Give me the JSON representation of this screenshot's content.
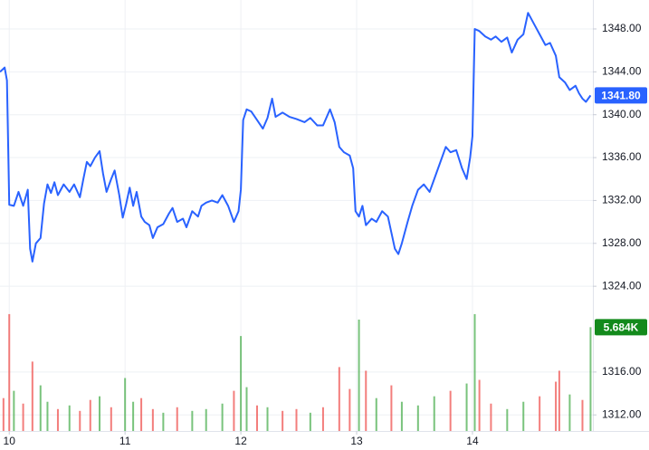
{
  "chart_data": {
    "type": "line",
    "color": "#2962ff",
    "xlim": [
      9.92,
      15.04
    ],
    "xticks": [
      10,
      11,
      12,
      13,
      14
    ],
    "ylim": [
      1310.5,
      1350.7
    ],
    "yticks": [
      {
        "value": 1312,
        "label": "1312.00"
      },
      {
        "value": 1316,
        "label": "1316.00"
      },
      {
        "value": 1324,
        "label": "1324.00"
      },
      {
        "value": 1328,
        "label": "1328.00"
      },
      {
        "value": 1332,
        "label": "1332.00"
      },
      {
        "value": 1336,
        "label": "1336.00"
      },
      {
        "value": 1340,
        "label": "1340.00"
      },
      {
        "value": 1344,
        "label": "1344.00"
      },
      {
        "value": 1348,
        "label": "1348.00"
      }
    ],
    "grid": true,
    "x": [
      9.92,
      9.96,
      9.98,
      10.0,
      10.04,
      10.08,
      10.12,
      10.16,
      10.18,
      10.2,
      10.23,
      10.27,
      10.3,
      10.33,
      10.36,
      10.39,
      10.42,
      10.47,
      10.52,
      10.56,
      10.61,
      10.64,
      10.67,
      10.7,
      10.74,
      10.78,
      10.81,
      10.84,
      10.88,
      10.91,
      10.95,
      10.98,
      11.01,
      11.04,
      11.07,
      11.1,
      11.14,
      11.17,
      11.21,
      11.24,
      11.28,
      11.33,
      11.38,
      11.41,
      11.45,
      11.5,
      11.53,
      11.58,
      11.63,
      11.66,
      11.7,
      11.75,
      11.8,
      11.84,
      11.89,
      11.94,
      11.98,
      12.0,
      12.02,
      12.05,
      12.09,
      12.14,
      12.19,
      12.23,
      12.27,
      12.3,
      12.36,
      12.42,
      12.48,
      12.55,
      12.6,
      12.66,
      12.71,
      12.77,
      12.81,
      12.85,
      12.89,
      12.94,
      12.97,
      12.99,
      13.02,
      13.05,
      13.08,
      13.13,
      13.17,
      13.22,
      13.27,
      13.3,
      13.33,
      13.36,
      13.39,
      13.44,
      13.48,
      13.53,
      13.58,
      13.63,
      13.67,
      13.72,
      13.77,
      13.81,
      13.86,
      13.91,
      13.95,
      13.98,
      14.0,
      14.02,
      14.06,
      14.11,
      14.16,
      14.2,
      14.25,
      14.3,
      14.34,
      14.39,
      14.44,
      14.48,
      14.53,
      14.58,
      14.63,
      14.67,
      14.72,
      14.75,
      14.8,
      14.84,
      14.89,
      14.92,
      14.95,
      14.98,
      15.02
    ],
    "values": [
      1344,
      1344.4,
      1343.2,
      1331.6,
      1331.5,
      1332.8,
      1331.5,
      1333,
      1327.5,
      1326.3,
      1328,
      1328.5,
      1331.7,
      1333.5,
      1332.7,
      1333.7,
      1332.5,
      1333.5,
      1332.8,
      1333.5,
      1332.3,
      1334,
      1335.6,
      1335.2,
      1336,
      1336.6,
      1334.5,
      1332.8,
      1334,
      1334.8,
      1332.5,
      1330.4,
      1331.7,
      1333.2,
      1331.5,
      1332.8,
      1330.5,
      1330,
      1329.7,
      1328.5,
      1329.5,
      1329.8,
      1330.8,
      1331.3,
      1330,
      1330.3,
      1329.5,
      1331,
      1330.5,
      1331.5,
      1331.8,
      1332,
      1331.8,
      1332.5,
      1331.5,
      1330,
      1331,
      1333,
      1339.5,
      1340.5,
      1340.3,
      1339.5,
      1338.7,
      1339.7,
      1341.5,
      1339.8,
      1340.2,
      1339.8,
      1339.6,
      1339.3,
      1339.7,
      1339,
      1339,
      1340.5,
      1339.3,
      1337,
      1336.5,
      1336.2,
      1335,
      1331,
      1330.5,
      1331.5,
      1329.7,
      1330.3,
      1330,
      1331,
      1330.5,
      1329,
      1327.5,
      1327,
      1328,
      1330,
      1331.5,
      1333,
      1333.5,
      1332.8,
      1334,
      1335.5,
      1337,
      1336.5,
      1336.7,
      1335,
      1334,
      1336,
      1338,
      1348,
      1347.8,
      1347.3,
      1347,
      1347.3,
      1346.8,
      1347.2,
      1345.8,
      1347,
      1347.5,
      1349.5,
      1348.5,
      1347.5,
      1346.5,
      1346.7,
      1345.5,
      1343.5,
      1343,
      1342.3,
      1342.7,
      1342,
      1341.5,
      1341.2,
      1341.8
    ],
    "price_label": "1341.80",
    "volume": {
      "y2lim": [
        0,
        23.6
      ],
      "x": [
        9.95,
        10.0,
        10.04,
        10.12,
        10.2,
        10.27,
        10.33,
        10.42,
        10.52,
        10.61,
        10.7,
        10.78,
        10.88,
        11.0,
        11.07,
        11.14,
        11.24,
        11.33,
        11.45,
        11.58,
        11.7,
        11.84,
        11.94,
        12.0,
        12.05,
        12.14,
        12.23,
        12.36,
        12.48,
        12.6,
        12.71,
        12.85,
        12.94,
        13.02,
        13.08,
        13.17,
        13.3,
        13.39,
        13.53,
        13.67,
        13.81,
        13.95,
        14.02,
        14.06,
        14.16,
        14.3,
        14.44,
        14.58,
        14.72,
        14.75,
        14.84,
        14.95,
        15.02
      ],
      "values": [
        1.8,
        6.4,
        2.2,
        1.5,
        3.8,
        2.5,
        1.6,
        1.2,
        1.4,
        1.1,
        1.7,
        1.9,
        1.3,
        2.9,
        1.6,
        1.8,
        1.2,
        1.0,
        1.3,
        1.1,
        1.2,
        1.5,
        2.2,
        5.2,
        2.4,
        1.4,
        1.3,
        1.1,
        1.2,
        1.0,
        1.3,
        3.5,
        2.3,
        6.1,
        3.3,
        1.8,
        2.5,
        1.6,
        1.4,
        1.9,
        2.2,
        2.6,
        6.4,
        2.8,
        1.5,
        1.2,
        1.6,
        1.9,
        2.7,
        3.3,
        2.0,
        1.7,
        5.684
      ],
      "colors": [
        "#ef5350",
        "#ef5350",
        "#4caf50",
        "#ef5350",
        "#ef5350",
        "#4caf50",
        "#4caf50",
        "#ef5350",
        "#4caf50",
        "#ef5350",
        "#ef5350",
        "#4caf50",
        "#ef5350",
        "#4caf50",
        "#4caf50",
        "#ef5350",
        "#ef5350",
        "#4caf50",
        "#ef5350",
        "#4caf50",
        "#4caf50",
        "#4caf50",
        "#ef5350",
        "#4caf50",
        "#4caf50",
        "#ef5350",
        "#4caf50",
        "#ef5350",
        "#ef5350",
        "#4caf50",
        "#ef5350",
        "#ef5350",
        "#ef5350",
        "#4caf50",
        "#ef5350",
        "#4caf50",
        "#ef5350",
        "#4caf50",
        "#4caf50",
        "#4caf50",
        "#ef5350",
        "#4caf50",
        "#4caf50",
        "#ef5350",
        "#ef5350",
        "#4caf50",
        "#4caf50",
        "#ef5350",
        "#ef5350",
        "#ef5350",
        "#4caf50",
        "#ef5350",
        "#4caf50"
      ],
      "badge_color": "#138a1c",
      "label": "5.684K"
    }
  }
}
